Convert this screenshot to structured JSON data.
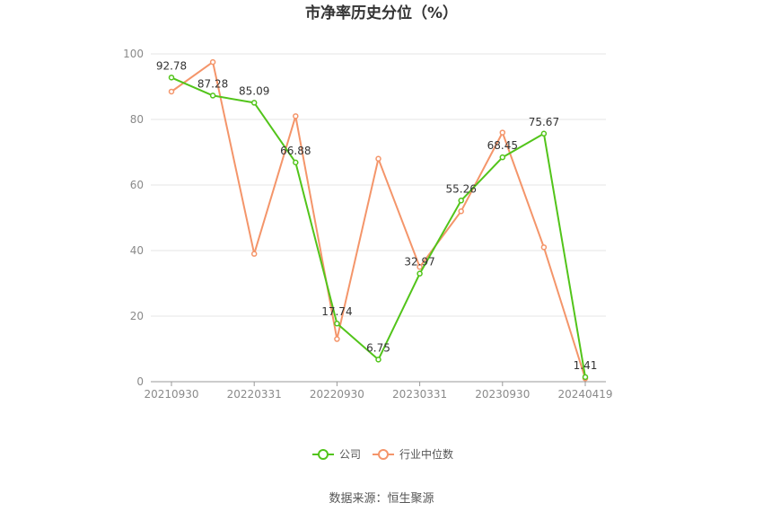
{
  "chart_data": {
    "type": "line",
    "title": "市净率历史分位（%）",
    "xlabel": "",
    "ylabel": "",
    "ylim": [
      0,
      100
    ],
    "yticks": [
      0,
      20,
      40,
      60,
      80,
      100
    ],
    "grid": true,
    "legend_position": "bottom-center",
    "x_tick_labels": [
      "20210930",
      "20220331",
      "20220930",
      "20230331",
      "20230930",
      "20240419"
    ],
    "x_tick_indices": [
      0,
      2,
      4,
      6,
      8,
      10
    ],
    "points_count": 11,
    "series": [
      {
        "name": "公司",
        "color": "#52c41a",
        "values": [
          92.78,
          87.28,
          85.09,
          66.88,
          17.74,
          6.75,
          32.97,
          55.26,
          68.45,
          75.67,
          1.41
        ],
        "data_labels": [
          "92.78",
          "87.28",
          "85.09",
          "66.88",
          "17.74",
          "6.75",
          "32.97",
          "55.26",
          "68.45",
          "75.67",
          "1.41"
        ]
      },
      {
        "name": "行业中位数",
        "color": "#f4956a",
        "values": [
          88.5,
          97.5,
          39.0,
          81.0,
          13.0,
          68.0,
          35.0,
          52.0,
          76.0,
          41.0,
          1.0
        ]
      }
    ]
  },
  "source": "数据来源：恒生聚源"
}
